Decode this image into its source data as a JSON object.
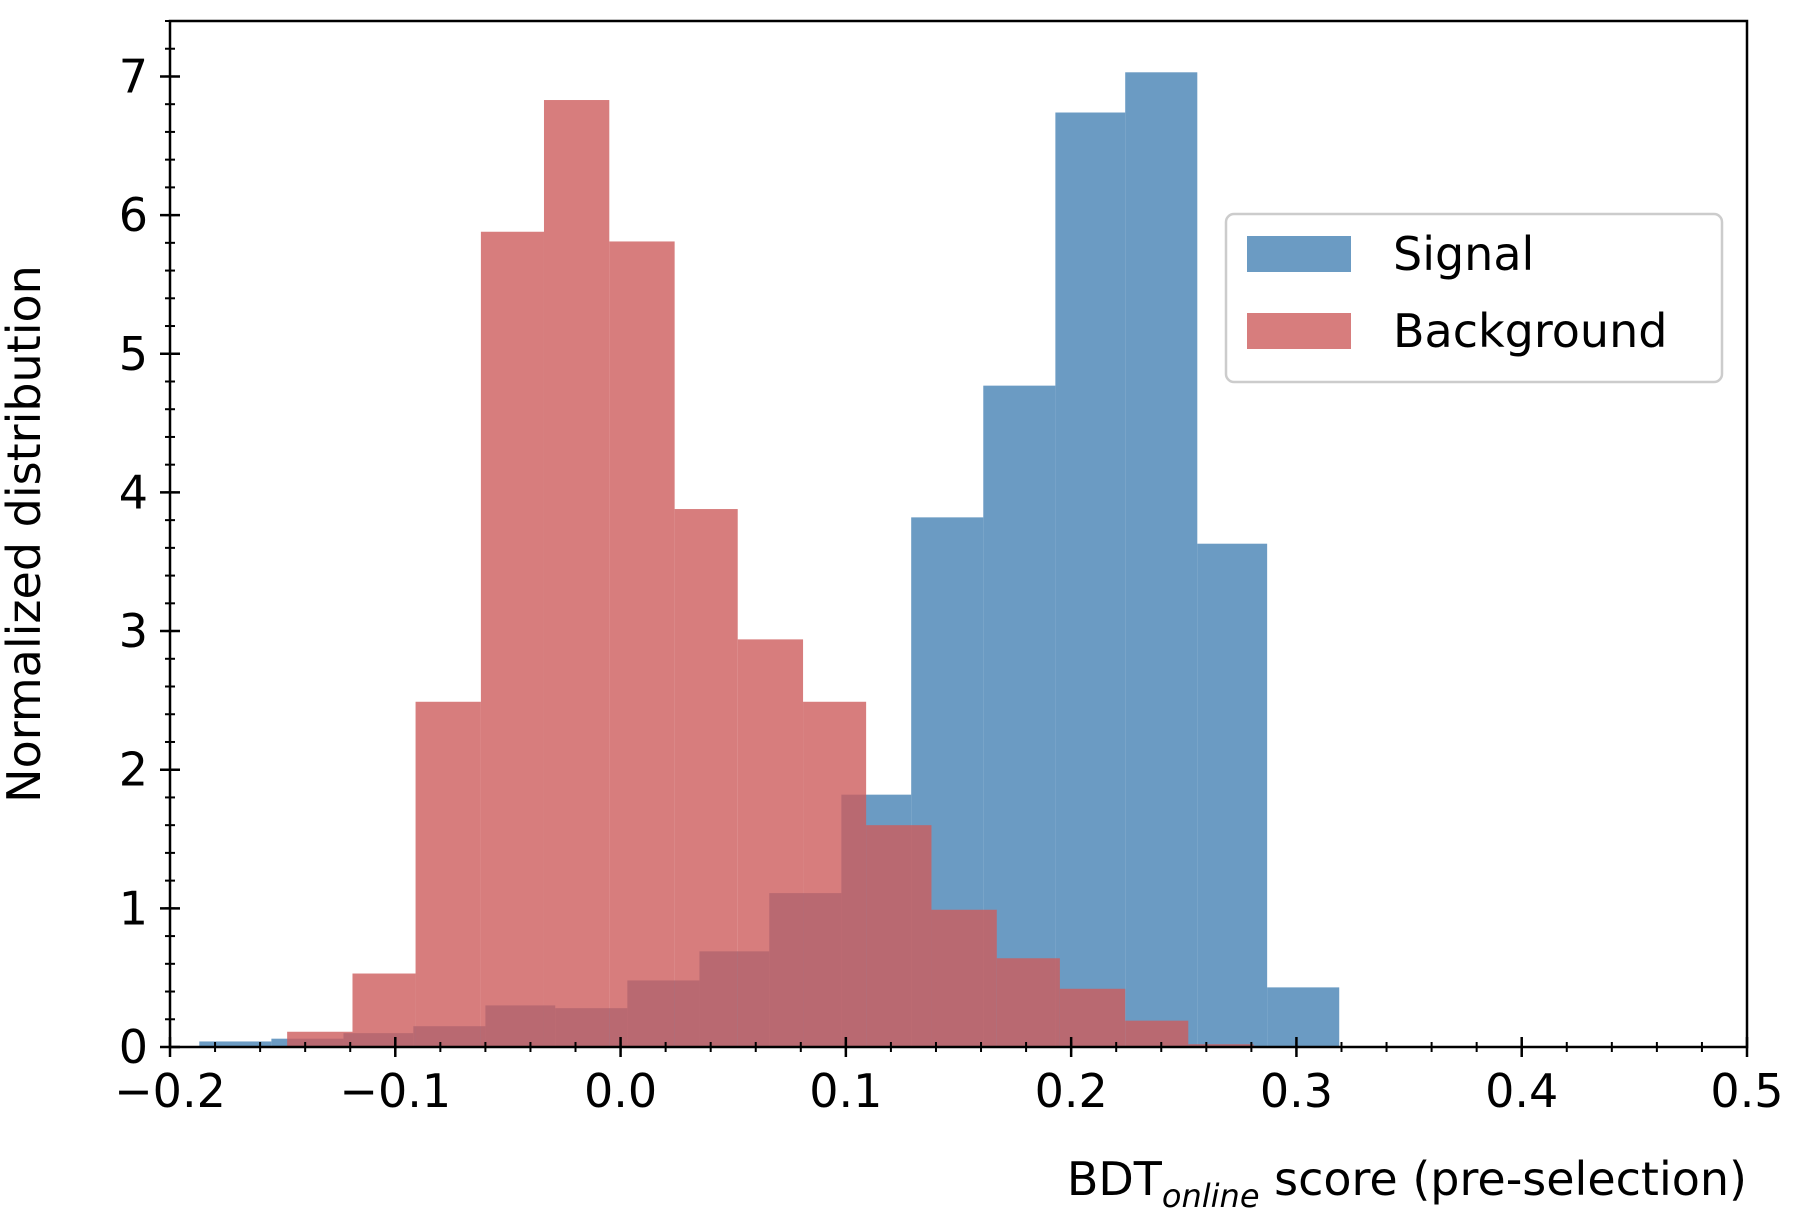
{
  "chart_data": {
    "type": "histogram",
    "xlabel": {
      "main": "BDT",
      "sub": "online",
      "rest": " score (pre-selection)"
    },
    "ylabel": "Normalized distribution",
    "xlim": [
      -0.2,
      0.5
    ],
    "ylim": [
      0,
      7.4
    ],
    "xticks": [
      {
        "value": -0.2,
        "label": "−0.2"
      },
      {
        "value": -0.1,
        "label": "−0.1"
      },
      {
        "value": 0,
        "label": "0.0"
      },
      0.1,
      0.2,
      0.3,
      0.4,
      0.5
    ],
    "yticks": [
      0,
      1,
      2,
      3,
      4,
      5,
      6,
      7
    ],
    "xminor": 0.02,
    "yminor": 0.2,
    "alpha": 0.8,
    "legend": "upper right",
    "series": [
      {
        "name": "Signal",
        "color": "#4682b4",
        "bins": [
          -0.187,
          -0.155,
          -0.123,
          -0.092,
          -0.06,
          -0.029,
          0.003,
          0.035,
          0.066,
          0.098,
          0.129,
          0.161,
          0.193,
          0.224,
          0.256,
          0.287,
          0.319
        ],
        "values": [
          0.04,
          0.06,
          0.1,
          0.15,
          0.3,
          0.28,
          0.48,
          0.69,
          1.11,
          1.82,
          3.82,
          4.77,
          6.74,
          7.03,
          3.63,
          0.43
        ]
      },
      {
        "name": "Background",
        "color": "#cd5c5c",
        "bins": [
          -0.148,
          -0.119,
          -0.091,
          -0.062,
          -0.034,
          -0.005,
          0.024,
          0.052,
          0.081,
          0.109,
          0.138,
          0.167,
          0.195,
          0.224,
          0.252,
          0.281
        ],
        "values": [
          0.11,
          0.53,
          2.49,
          5.88,
          6.83,
          5.81,
          3.88,
          2.94,
          2.49,
          1.6,
          0.99,
          0.64,
          0.42,
          0.19,
          0.02
        ]
      }
    ]
  }
}
